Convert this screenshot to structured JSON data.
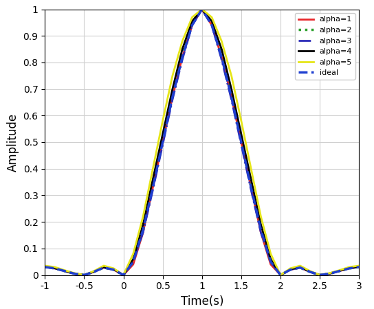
{
  "chart_data": {
    "type": "line",
    "x_label": "Time(s)",
    "y_label": "Amplitude",
    "x": [
      -1,
      -0.875,
      -0.75,
      -0.625,
      -0.5,
      -0.375,
      -0.25,
      -0.125,
      0,
      0.125,
      0.25,
      0.375,
      0.5,
      0.625,
      0.75,
      0.875,
      1,
      1.125,
      1.25,
      1.375,
      1.5,
      1.625,
      1.75,
      1.875,
      2,
      2.125,
      2.25,
      2.375,
      2.5,
      2.625,
      2.75,
      2.875,
      3
    ],
    "series": [
      {
        "name": "alpha=1",
        "color": "#e8262a",
        "line_style": "solid",
        "values": [
          0.03,
          0.025,
          0.015,
          0.005,
          0,
          0.012,
          0.028,
          0.02,
          0,
          0.04,
          0.16,
          0.33,
          0.5,
          0.67,
          0.82,
          0.94,
          1,
          0.94,
          0.82,
          0.67,
          0.5,
          0.33,
          0.16,
          0.04,
          0,
          0.02,
          0.028,
          0.012,
          0,
          0.005,
          0.015,
          0.025,
          0.03
        ]
      },
      {
        "name": "alpha=2",
        "color": "#2ca02c",
        "line_style": "dotted",
        "values": [
          0.03,
          0.025,
          0.015,
          0.005,
          0,
          0.012,
          0.028,
          0.02,
          0,
          0.05,
          0.17,
          0.34,
          0.51,
          0.68,
          0.83,
          0.945,
          1,
          0.945,
          0.83,
          0.68,
          0.51,
          0.34,
          0.17,
          0.05,
          0,
          0.02,
          0.028,
          0.012,
          0,
          0.005,
          0.015,
          0.025,
          0.03
        ]
      },
      {
        "name": "alpha=3",
        "color": "#2b2bb8",
        "line_style": "dashdot",
        "values": [
          0.03,
          0.025,
          0.015,
          0.005,
          0,
          0.012,
          0.028,
          0.02,
          0,
          0.05,
          0.16,
          0.32,
          0.49,
          0.66,
          0.81,
          0.94,
          1,
          0.94,
          0.81,
          0.66,
          0.49,
          0.32,
          0.16,
          0.05,
          0,
          0.02,
          0.028,
          0.012,
          0,
          0.005,
          0.015,
          0.025,
          0.03
        ]
      },
      {
        "name": "alpha=4",
        "color": "#000000",
        "line_style": "solid",
        "values": [
          0.032,
          0.026,
          0.016,
          0.006,
          0,
          0.013,
          0.03,
          0.022,
          0,
          0.06,
          0.19,
          0.36,
          0.53,
          0.7,
          0.85,
          0.955,
          1,
          0.955,
          0.85,
          0.7,
          0.53,
          0.36,
          0.19,
          0.06,
          0,
          0.022,
          0.03,
          0.013,
          0,
          0.006,
          0.016,
          0.026,
          0.032
        ]
      },
      {
        "name": "alpha=5",
        "color": "#e6e619",
        "line_style": "solid",
        "values": [
          0.035,
          0.03,
          0.018,
          0.007,
          0,
          0.015,
          0.035,
          0.025,
          0,
          0.08,
          0.22,
          0.4,
          0.58,
          0.75,
          0.88,
          0.97,
          1,
          0.97,
          0.88,
          0.75,
          0.58,
          0.4,
          0.22,
          0.08,
          0,
          0.025,
          0.035,
          0.015,
          0,
          0.007,
          0.018,
          0.03,
          0.035
        ]
      },
      {
        "name": "ideal",
        "color": "#1f3fd0",
        "line_style": "dashed",
        "values": [
          0.03,
          0.025,
          0.015,
          0.005,
          0,
          0.012,
          0.028,
          0.02,
          0,
          0.05,
          0.17,
          0.33,
          0.5,
          0.67,
          0.82,
          0.94,
          1,
          0.94,
          0.82,
          0.67,
          0.5,
          0.33,
          0.17,
          0.05,
          0,
          0.02,
          0.028,
          0.012,
          0,
          0.005,
          0.015,
          0.025,
          0.03
        ]
      }
    ],
    "xlim": [
      -1,
      3
    ],
    "ylim": [
      0,
      1
    ],
    "xticks": [
      -1,
      -0.5,
      0,
      0.5,
      1,
      1.5,
      2,
      2.5,
      3
    ],
    "yticks": [
      0,
      0.1,
      0.2,
      0.3,
      0.4,
      0.5,
      0.6,
      0.7,
      0.8,
      0.9,
      1
    ],
    "grid": true,
    "legend": "upper right"
  }
}
